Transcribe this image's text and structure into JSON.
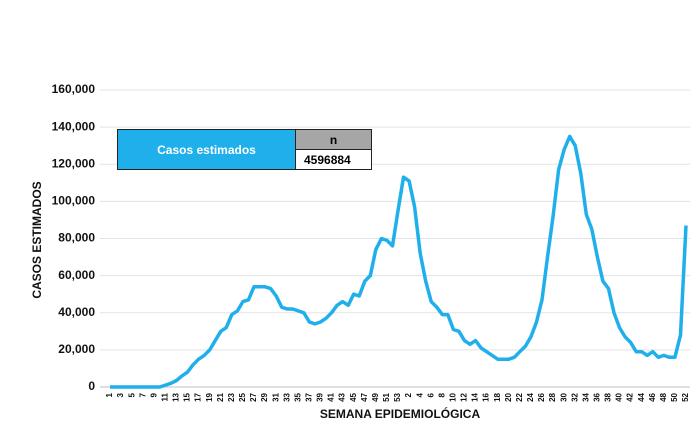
{
  "chart_data": {
    "type": "line",
    "x_label": "SEMANA EPIDEMIOLÓGICA",
    "y_label": "CASOS ESTIMADOS",
    "categories": [
      "1",
      null,
      "3",
      null,
      "5",
      null,
      "7",
      null,
      "9",
      null,
      "11",
      null,
      "13",
      null,
      "15",
      null,
      "17",
      null,
      "19",
      null,
      "21",
      null,
      "23",
      null,
      "25",
      null,
      "27",
      null,
      "29",
      null,
      "31",
      null,
      "33",
      null,
      "35",
      null,
      "37",
      null,
      "39",
      null,
      "41",
      null,
      "43",
      null,
      "45",
      null,
      "47",
      null,
      "49",
      null,
      "51",
      null,
      "53",
      null,
      "2",
      null,
      "4",
      null,
      "6",
      null,
      "8",
      null,
      "10",
      null,
      "12",
      null,
      "14",
      null,
      "16",
      null,
      "18",
      null,
      "20",
      null,
      "22",
      null,
      "24",
      null,
      "26",
      null,
      "28",
      null,
      "30",
      null,
      "32",
      null,
      "34",
      null,
      "36",
      null,
      "38",
      null,
      "40",
      null,
      "42",
      null,
      "44",
      null,
      "46",
      null,
      "48",
      null,
      "50",
      null,
      "52"
    ],
    "series": [
      {
        "color": "#1fb0ec",
        "values": [
          0,
          0,
          0,
          0,
          0,
          0,
          0,
          0,
          0,
          0,
          1000,
          2000,
          3500,
          6000,
          8000,
          12000,
          15000,
          17000,
          20000,
          25000,
          30000,
          32000,
          39000,
          41000,
          46000,
          47000,
          54000,
          54000,
          54000,
          53000,
          49000,
          43000,
          42000,
          42000,
          41000,
          40000,
          35000,
          34000,
          35000,
          37000,
          40000,
          44000,
          46000,
          44000,
          50000,
          49000,
          57000,
          60000,
          74000,
          80000,
          79000,
          76000,
          95000,
          113000,
          111000,
          97000,
          72000,
          57000,
          46000,
          43000,
          39000,
          39000,
          31000,
          30000,
          25000,
          23000,
          25000,
          21000,
          19000,
          17000,
          15000,
          15000,
          15000,
          16000,
          19000,
          22000,
          27000,
          35000,
          47000,
          70000,
          92000,
          117000,
          128000,
          135000,
          130000,
          115000,
          93000,
          85000,
          70000,
          57000,
          53000,
          40000,
          32000,
          27000,
          24000,
          19000,
          19000,
          17000,
          19000,
          16000,
          17000,
          16000,
          16000,
          28000,
          87000
        ]
      }
    ],
    "ylim": [
      0,
      160000
    ],
    "yticks": [
      0,
      {
        "value": 20000,
        "label": "20,000"
      },
      {
        "value": 40000,
        "label": "40,000"
      },
      {
        "value": 60000,
        "label": "60,000"
      },
      {
        "value": 80000,
        "label": "80,000"
      },
      {
        "value": 100000,
        "label": "100,000"
      },
      {
        "value": 120000,
        "label": "120,000"
      },
      {
        "value": 140000,
        "label": "140,000"
      },
      {
        "value": 160000,
        "label": "160,000"
      }
    ],
    "grid": true
  },
  "table": {
    "label": "Casos estimados",
    "column": "n",
    "value": 4596884
  }
}
